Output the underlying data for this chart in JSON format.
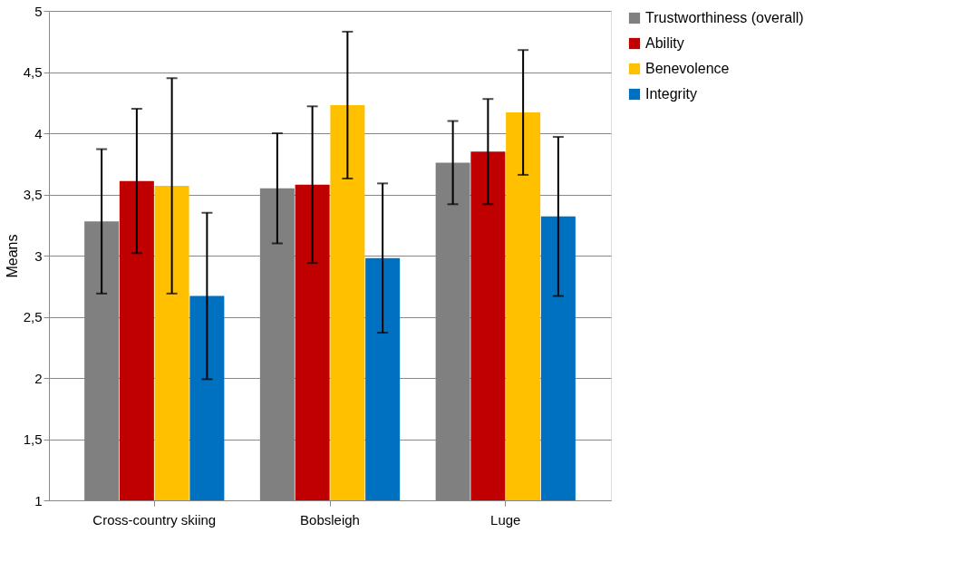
{
  "chart_data": {
    "type": "bar",
    "ylabel": "Means",
    "categories": [
      "Cross-country skiing",
      "Bobsleigh",
      "Luge"
    ],
    "series": [
      {
        "name": "Trustworthiness (overall)",
        "color": "#808080",
        "values": [
          3.28,
          3.55,
          3.76
        ],
        "errors": [
          [
            2.69,
            3.87
          ],
          [
            3.1,
            4.0
          ],
          [
            3.42,
            4.1
          ]
        ]
      },
      {
        "name": "Ability",
        "color": "#c00000",
        "values": [
          3.61,
          3.58,
          3.85
        ],
        "errors": [
          [
            3.02,
            4.2
          ],
          [
            2.94,
            4.22
          ],
          [
            3.42,
            4.28
          ]
        ]
      },
      {
        "name": "Benevolence",
        "color": "#ffc000",
        "values": [
          3.57,
          4.23,
          4.17
        ],
        "errors": [
          [
            2.69,
            4.45
          ],
          [
            3.63,
            4.83
          ],
          [
            3.66,
            4.68
          ]
        ]
      },
      {
        "name": "Integrity",
        "color": "#0070c0",
        "values": [
          2.67,
          2.98,
          3.32
        ],
        "errors": [
          [
            1.99,
            3.35
          ],
          [
            2.37,
            3.59
          ],
          [
            2.67,
            3.97
          ]
        ]
      }
    ],
    "ylim": [
      1,
      5
    ],
    "yticks": [
      1,
      {
        "value": 1.5,
        "label": "1,5"
      },
      2,
      {
        "value": 2.5,
        "label": "2,5"
      },
      3,
      {
        "value": 3.5,
        "label": "3,5"
      },
      4,
      {
        "value": 4.5,
        "label": "4,5"
      },
      5
    ],
    "grid": "y",
    "legend": "right"
  }
}
